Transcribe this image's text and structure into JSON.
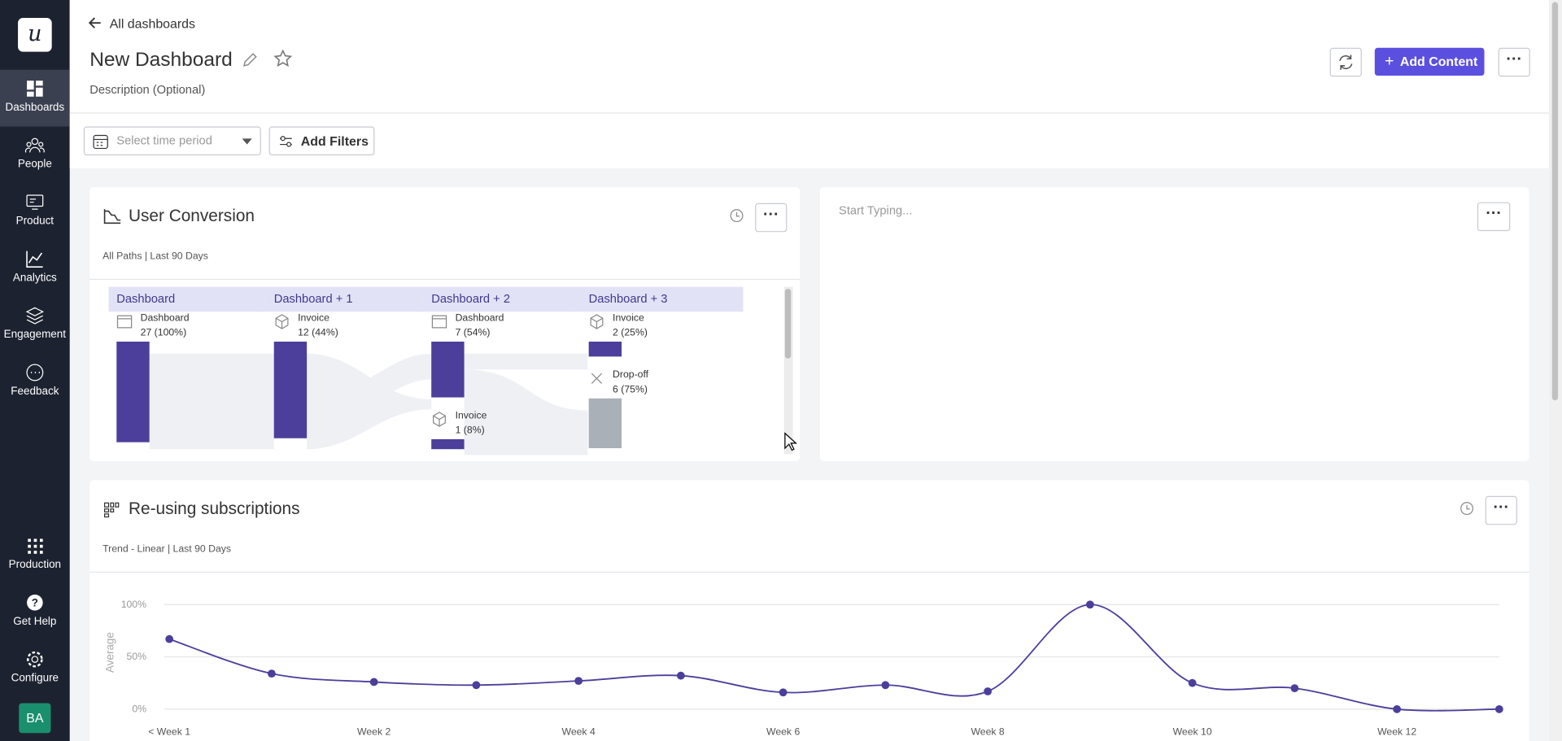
{
  "sidebar": {
    "logo": "u",
    "nav": [
      "Dashboards",
      "People",
      "Product",
      "Analytics",
      "Engagement",
      "Feedback"
    ],
    "bottom": [
      "Production",
      "Get Help",
      "Configure"
    ],
    "avatar": "BA"
  },
  "header": {
    "back": "All dashboards",
    "title": "New Dashboard",
    "description": "Description (Optional)",
    "add_content": "Add Content"
  },
  "filters": {
    "time_period": "Select time period",
    "add_filters": "Add Filters"
  },
  "conversion": {
    "title": "User Conversion",
    "subtitle": "All Paths | Last 90 Days",
    "steps": [
      {
        "name": "Dashboard",
        "nodes": [
          {
            "label": "Dashboard",
            "count": "27 (100%)"
          }
        ]
      },
      {
        "name": "Dashboard + 1",
        "nodes": [
          {
            "label": "Invoice",
            "count": "12 (44%)"
          }
        ]
      },
      {
        "name": "Dashboard + 2",
        "nodes": [
          {
            "label": "Dashboard",
            "count": "7 (54%)"
          },
          {
            "label": "Invoice",
            "count": "1 (8%)"
          }
        ]
      },
      {
        "name": "Dashboard + 3",
        "nodes": [
          {
            "label": "Invoice",
            "count": "2 (25%)"
          },
          {
            "label": "Drop-off",
            "count": "6 (75%)"
          }
        ]
      }
    ]
  },
  "text_widget": {
    "placeholder": "Start Typing..."
  },
  "chart_data": {
    "type": "line",
    "title": "Re-using subscriptions",
    "subtitle": "Trend - Linear | Last 90 Days",
    "y_label": "Average",
    "categories": [
      "< Week 1",
      null,
      "Week 2",
      null,
      "Week 4",
      null,
      "Week 6",
      null,
      "Week 8",
      null,
      "Week 10",
      null,
      "Week 12",
      null
    ],
    "series": [
      {
        "name": "Average",
        "color": "#4b3f9b",
        "values": [
          67,
          34,
          26,
          23,
          27,
          32,
          16,
          23,
          17,
          100,
          25,
          20,
          0,
          0
        ]
      }
    ],
    "ylim": [
      0,
      100
    ],
    "yticks": [
      {
        "value": 0,
        "label": "0%"
      },
      {
        "value": 50,
        "label": "50%"
      },
      {
        "value": 100,
        "label": "100%"
      }
    ],
    "grid": true
  }
}
